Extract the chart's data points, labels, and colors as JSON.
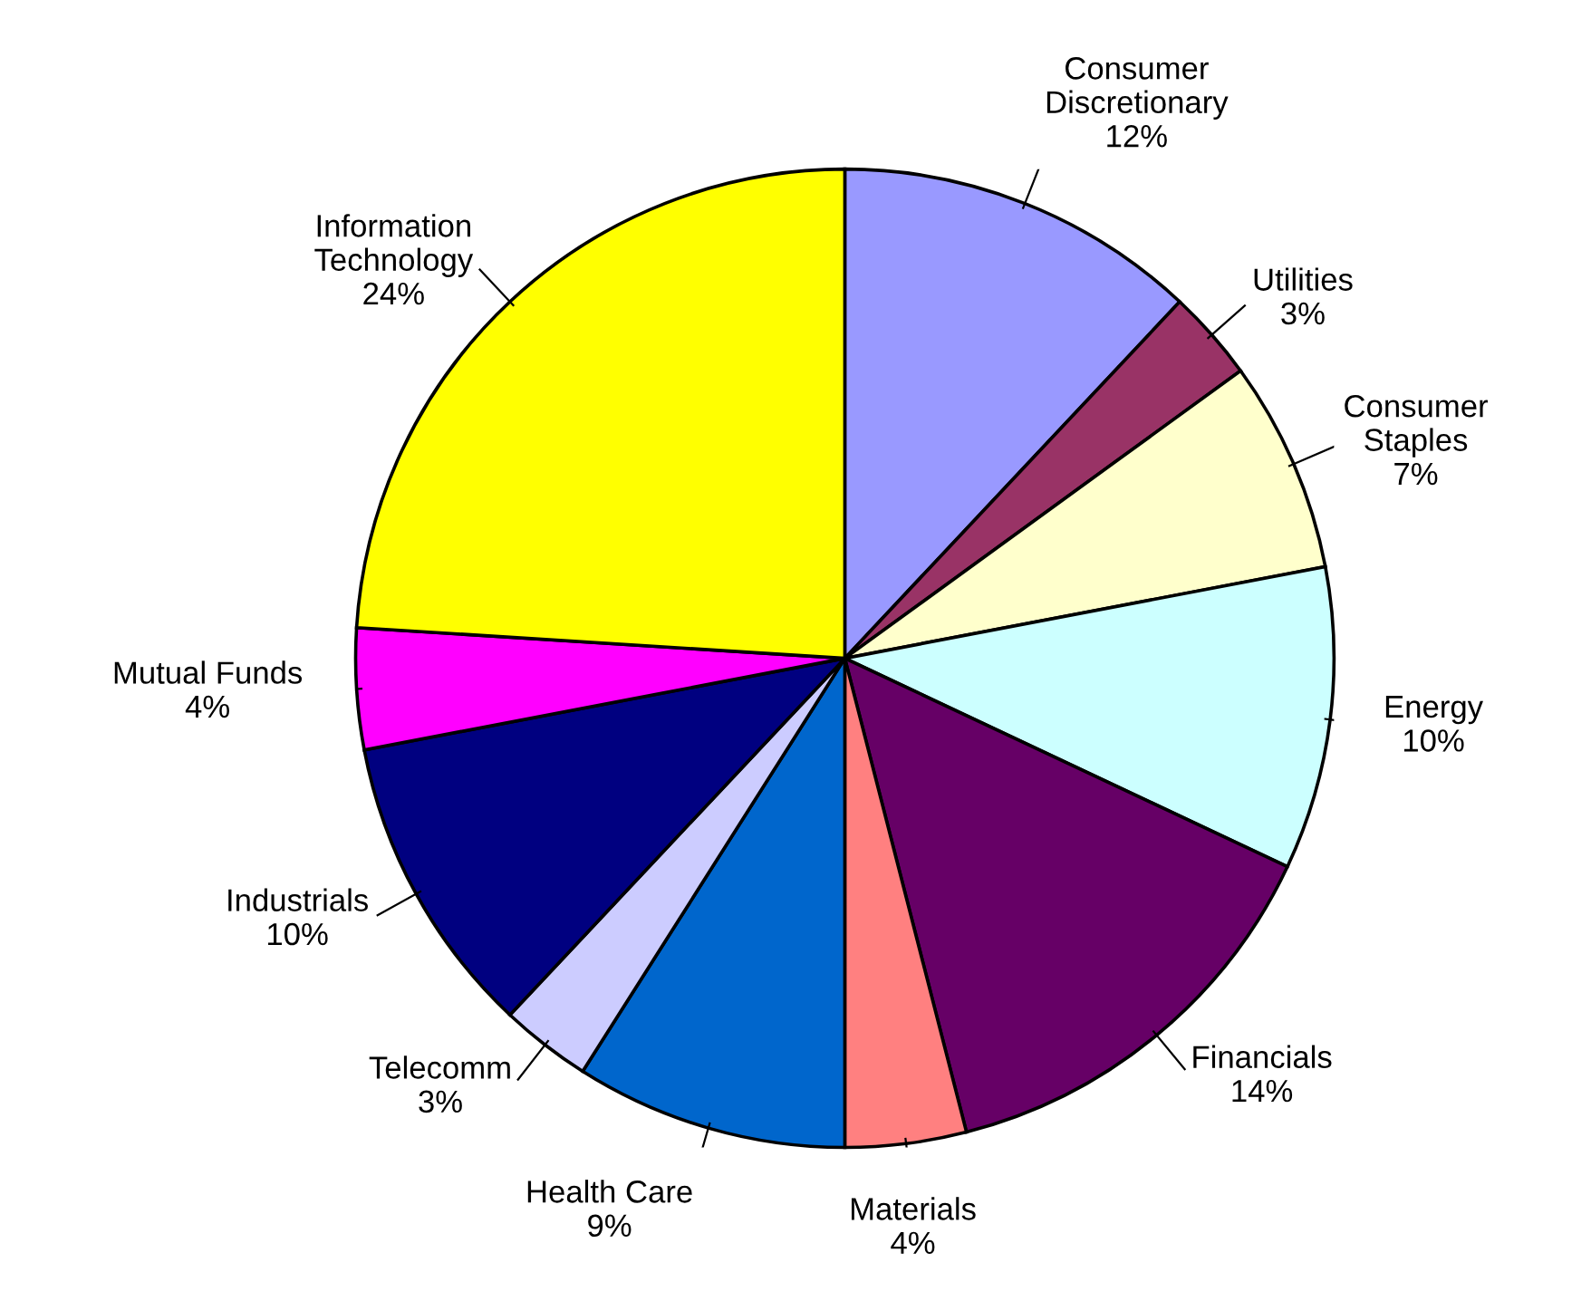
{
  "chart_data": {
    "type": "pie",
    "categories": [
      "Consumer\nDiscretionary",
      "Utilities",
      "Consumer\nStaples",
      "Energy",
      "Financials",
      "Materials",
      "Health Care",
      "Telecomm",
      "Industrials",
      "Mutual Funds",
      "Information\nTechnology"
    ],
    "values": [
      12,
      3,
      7,
      10,
      14,
      4,
      9,
      3,
      10,
      4,
      24
    ],
    "value_labels": [
      "12%",
      "3%",
      "7%",
      "10%",
      "14%",
      "4%",
      "9%",
      "3%",
      "10%",
      "4%",
      "24%"
    ],
    "colors": [
      "#9999ff",
      "#993366",
      "#ffffcc",
      "#ccffff",
      "#660066",
      "#ff8080",
      "#0066cc",
      "#ccccff",
      "#000080",
      "#ff00ff",
      "#ffff00"
    ],
    "legend": false
  }
}
